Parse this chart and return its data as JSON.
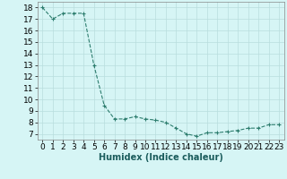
{
  "x": [
    0,
    1,
    2,
    3,
    4,
    5,
    6,
    7,
    8,
    9,
    10,
    11,
    12,
    13,
    14,
    15,
    16,
    17,
    18,
    19,
    20,
    21,
    22,
    23
  ],
  "y": [
    18,
    17,
    17.5,
    17.5,
    17.5,
    13,
    9.5,
    8.3,
    8.3,
    8.5,
    8.3,
    8.2,
    8.0,
    7.5,
    7.0,
    6.8,
    7.1,
    7.1,
    7.2,
    7.3,
    7.5,
    7.5,
    7.8,
    7.8
  ],
  "line_color": "#2d7d6e",
  "marker": "+",
  "marker_size": 3,
  "bg_color": "#d6f5f5",
  "grid_color": "#b8dede",
  "xlabel": "Humidex (Indice chaleur)",
  "xlim": [
    -0.5,
    23.5
  ],
  "ylim": [
    6.5,
    18.5
  ],
  "yticks": [
    7,
    8,
    9,
    10,
    11,
    12,
    13,
    14,
    15,
    16,
    17,
    18
  ],
  "xticks": [
    0,
    1,
    2,
    3,
    4,
    5,
    6,
    7,
    8,
    9,
    10,
    11,
    12,
    13,
    14,
    15,
    16,
    17,
    18,
    19,
    20,
    21,
    22,
    23
  ],
  "xlabel_fontsize": 7,
  "tick_fontsize": 6.5
}
